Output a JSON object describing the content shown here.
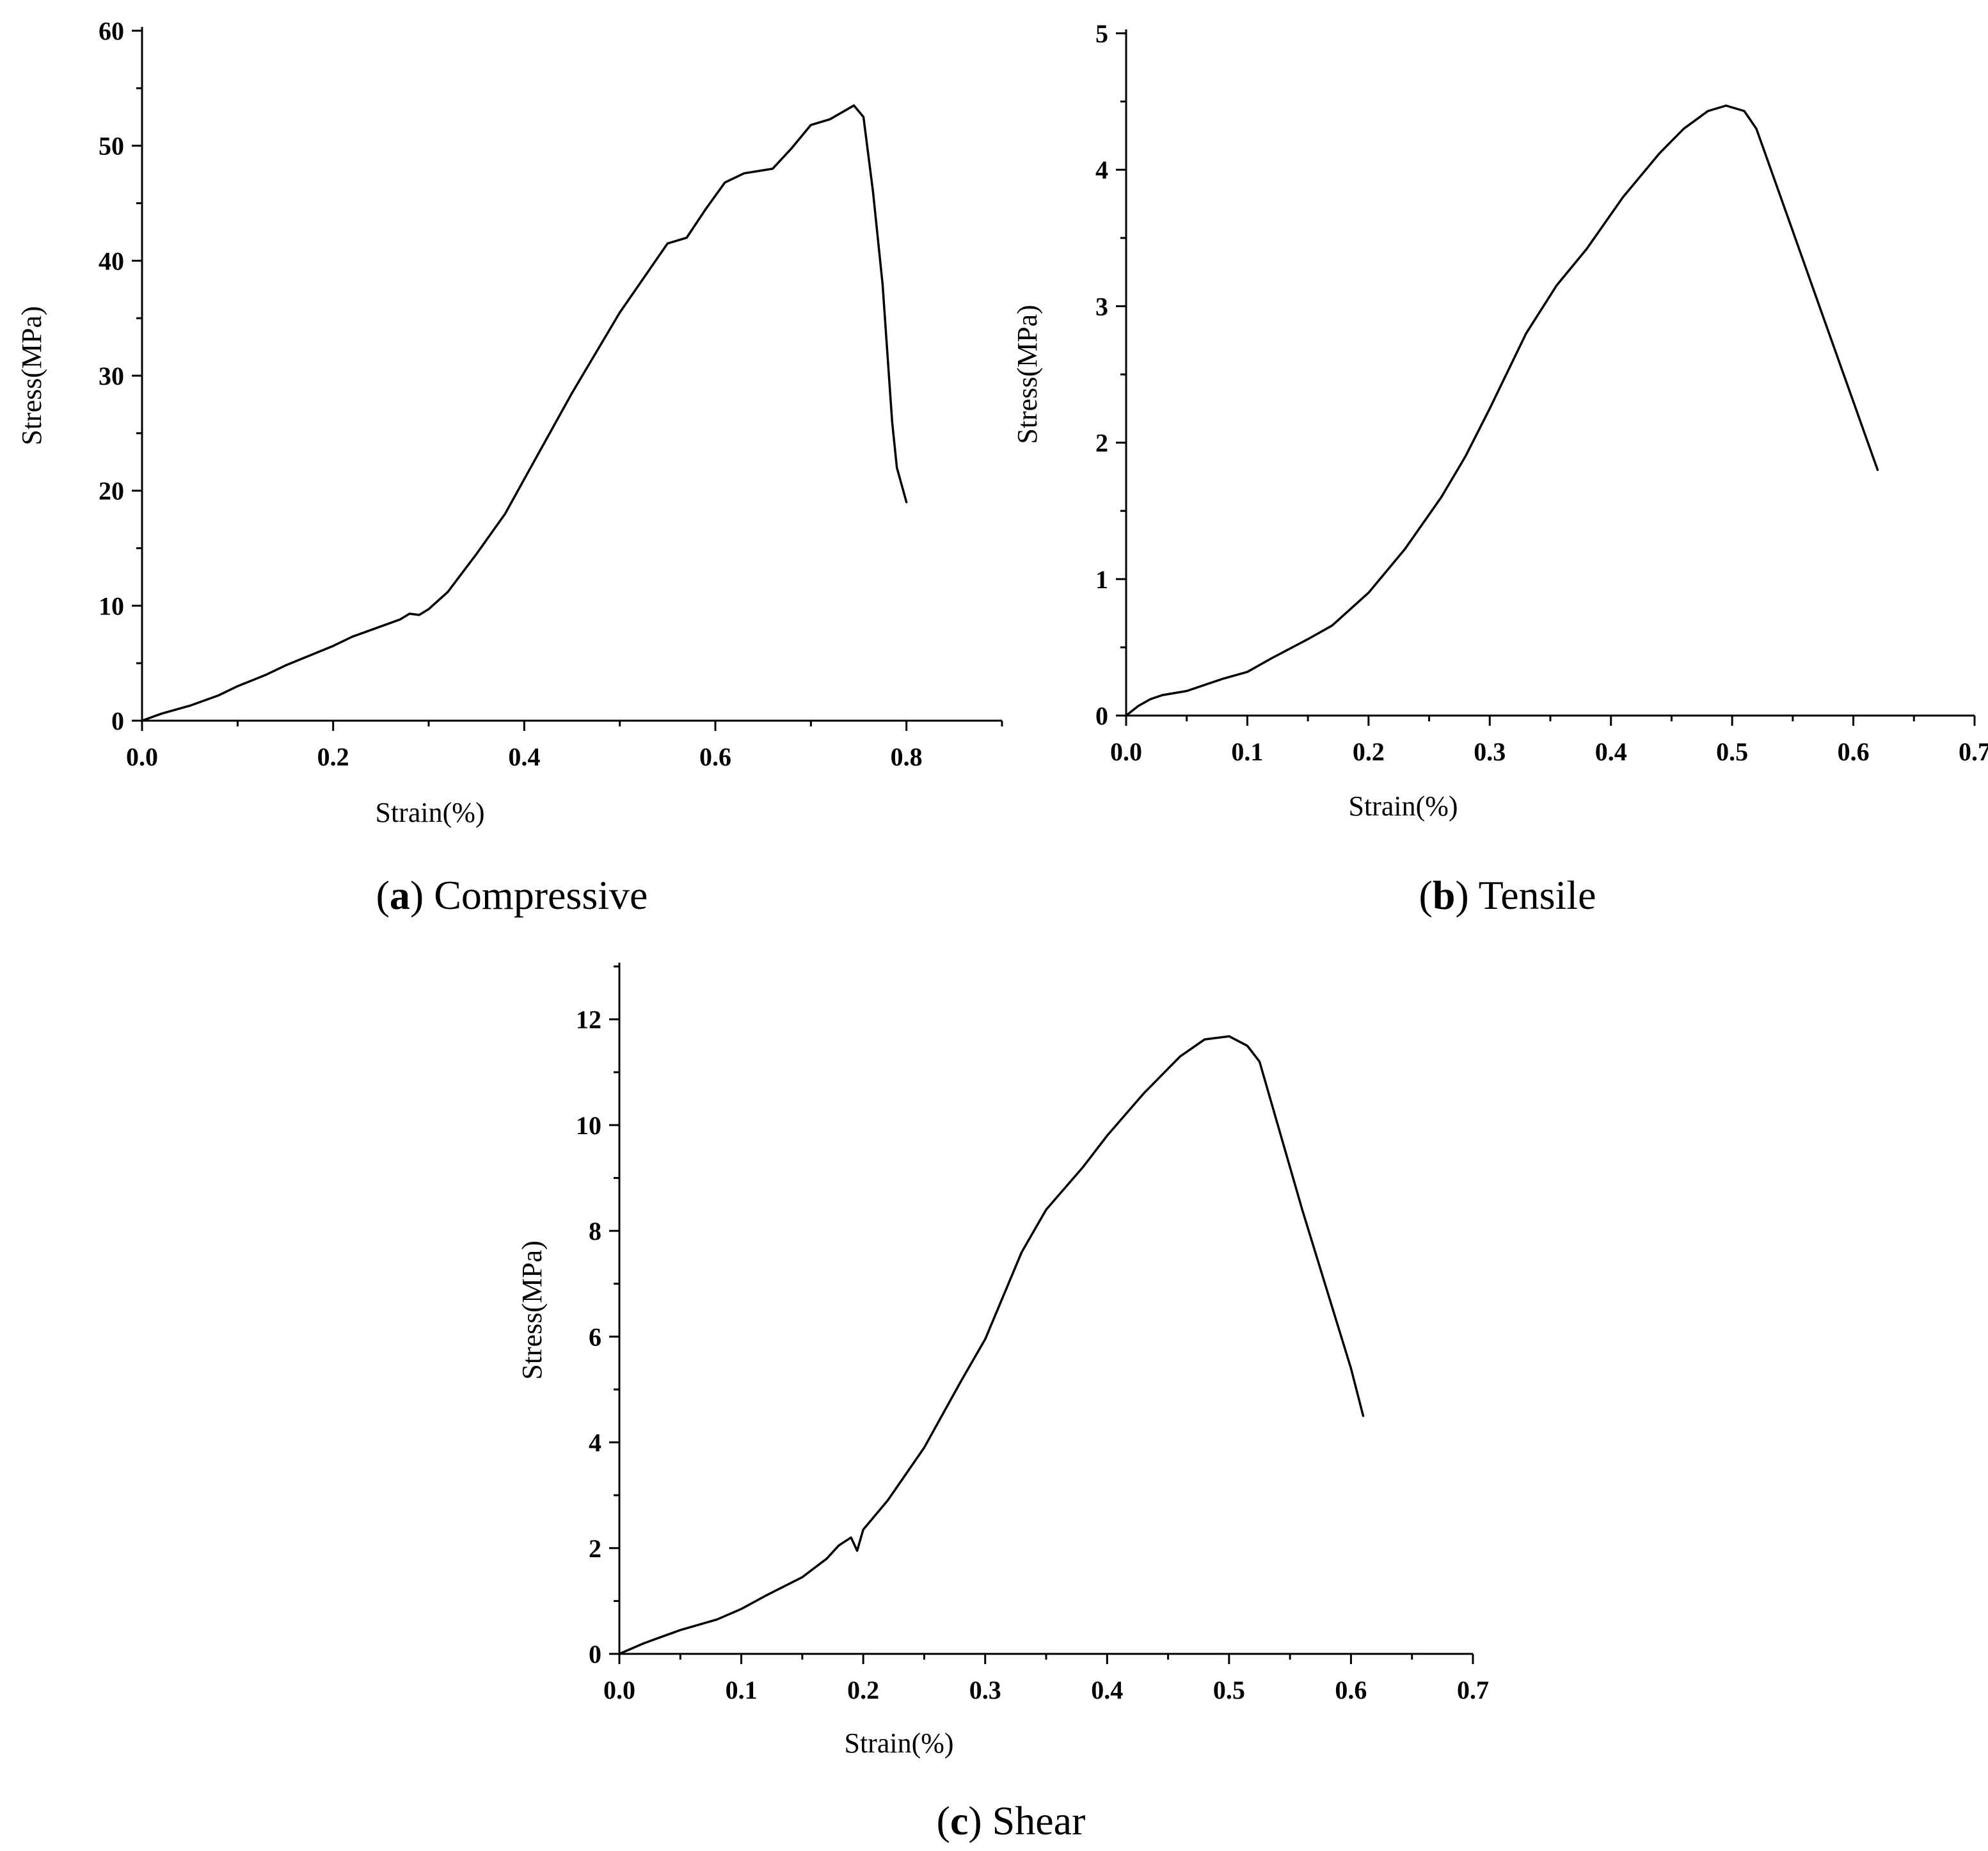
{
  "chart_data": [
    {
      "id": "a",
      "type": "line",
      "caption_letter": "a",
      "caption_text": "Compressive",
      "xlabel": "Strain(%)",
      "ylabel": "Stress(MPa)",
      "xlim": [
        0,
        0.9
      ],
      "ylim": [
        0,
        60
      ],
      "x_ticks": [
        0.0,
        0.2,
        0.4,
        0.6,
        0.8
      ],
      "x_tick_labels": [
        "0.0",
        "0.2",
        "0.4",
        "0.6",
        "0.8"
      ],
      "x_minor_ticks": [
        0.1,
        0.3,
        0.5,
        0.7,
        0.9
      ],
      "y_ticks": [
        0,
        10,
        20,
        30,
        40,
        50,
        60
      ],
      "y_tick_labels": [
        "0",
        "10",
        "20",
        "30",
        "40",
        "50",
        "60"
      ],
      "y_minor_ticks": [
        5,
        15,
        25,
        35,
        45,
        55
      ],
      "series": [
        {
          "name": "Compressive",
          "x": [
            0,
            0.02,
            0.05,
            0.08,
            0.1,
            0.13,
            0.15,
            0.2,
            0.22,
            0.25,
            0.27,
            0.28,
            0.29,
            0.3,
            0.32,
            0.35,
            0.38,
            0.4,
            0.45,
            0.5,
            0.55,
            0.57,
            0.59,
            0.61,
            0.63,
            0.66,
            0.68,
            0.7,
            0.72,
            0.745,
            0.755,
            0.765,
            0.775,
            0.785,
            0.79,
            0.8
          ],
          "y": [
            0,
            0.6,
            1.3,
            2.2,
            3.0,
            4.0,
            4.8,
            6.5,
            7.3,
            8.2,
            8.8,
            9.3,
            9.2,
            9.7,
            11.2,
            14.5,
            18.0,
            21.0,
            28.5,
            35.5,
            41.5,
            42.0,
            44.5,
            46.8,
            47.6,
            48.0,
            49.8,
            51.8,
            52.3,
            53.5,
            52.5,
            46.0,
            38.0,
            26.0,
            22.0,
            19.0
          ]
        }
      ]
    },
    {
      "id": "b",
      "type": "line",
      "caption_letter": "b",
      "caption_text": "Tensile",
      "xlabel": "Strain(%)",
      "ylabel": "Stress(MPa)",
      "xlim": [
        0,
        0.7
      ],
      "ylim": [
        0,
        5
      ],
      "x_ticks": [
        0.0,
        0.1,
        0.2,
        0.3,
        0.4,
        0.5,
        0.6,
        0.7
      ],
      "x_tick_labels": [
        "0.0",
        "0.1",
        "0.2",
        "0.3",
        "0.4",
        "0.5",
        "0.6",
        "0.7"
      ],
      "x_minor_ticks": [
        0.05,
        0.15,
        0.25,
        0.35,
        0.45,
        0.55,
        0.65
      ],
      "y_ticks": [
        0,
        1,
        2,
        3,
        4,
        5
      ],
      "y_tick_labels": [
        "0",
        "1",
        "2",
        "3",
        "4",
        "5"
      ],
      "y_minor_ticks": [
        0.5,
        1.5,
        2.5,
        3.5,
        4.5
      ],
      "series": [
        {
          "name": "Tensile",
          "x": [
            0,
            0.01,
            0.02,
            0.03,
            0.05,
            0.08,
            0.1,
            0.12,
            0.15,
            0.17,
            0.2,
            0.23,
            0.26,
            0.28,
            0.3,
            0.33,
            0.355,
            0.38,
            0.41,
            0.44,
            0.46,
            0.48,
            0.495,
            0.51,
            0.52,
            0.53,
            0.55,
            0.57,
            0.59,
            0.6,
            0.61,
            0.62
          ],
          "y": [
            0,
            0.07,
            0.12,
            0.15,
            0.18,
            0.27,
            0.32,
            0.42,
            0.56,
            0.66,
            0.9,
            1.22,
            1.6,
            1.9,
            2.25,
            2.8,
            3.15,
            3.42,
            3.8,
            4.12,
            4.3,
            4.43,
            4.47,
            4.43,
            4.3,
            4.05,
            3.55,
            3.05,
            2.55,
            2.3,
            2.05,
            1.8
          ]
        }
      ]
    },
    {
      "id": "c",
      "type": "line",
      "caption_letter": "c",
      "caption_text": "Shear",
      "xlabel": "Strain(%)",
      "ylabel": "Stress(MPa)",
      "xlim": [
        0,
        0.7
      ],
      "ylim": [
        0,
        13
      ],
      "x_ticks": [
        0.0,
        0.1,
        0.2,
        0.3,
        0.4,
        0.5,
        0.6,
        0.7
      ],
      "x_tick_labels": [
        "0.0",
        "0.1",
        "0.2",
        "0.3",
        "0.4",
        "0.5",
        "0.6",
        "0.7"
      ],
      "x_minor_ticks": [
        0.05,
        0.15,
        0.25,
        0.35,
        0.45,
        0.55,
        0.65
      ],
      "y_ticks": [
        0,
        2,
        4,
        6,
        8,
        10,
        12
      ],
      "y_tick_labels": [
        "0",
        "2",
        "4",
        "6",
        "8",
        "10",
        "12"
      ],
      "y_minor_ticks": [
        1,
        3,
        5,
        7,
        9,
        11,
        13
      ],
      "series": [
        {
          "name": "Shear",
          "x": [
            0,
            0.02,
            0.05,
            0.08,
            0.1,
            0.12,
            0.15,
            0.17,
            0.18,
            0.19,
            0.195,
            0.2,
            0.22,
            0.25,
            0.28,
            0.3,
            0.33,
            0.35,
            0.38,
            0.4,
            0.43,
            0.46,
            0.48,
            0.5,
            0.515,
            0.525,
            0.54,
            0.56,
            0.58,
            0.6,
            0.61
          ],
          "y": [
            0,
            0.2,
            0.45,
            0.65,
            0.85,
            1.1,
            1.45,
            1.8,
            2.05,
            2.2,
            1.95,
            2.35,
            2.9,
            3.9,
            5.15,
            5.95,
            7.6,
            8.4,
            9.2,
            9.8,
            10.6,
            11.3,
            11.62,
            11.68,
            11.5,
            11.2,
            10.0,
            8.4,
            6.9,
            5.4,
            4.5
          ]
        }
      ]
    }
  ]
}
